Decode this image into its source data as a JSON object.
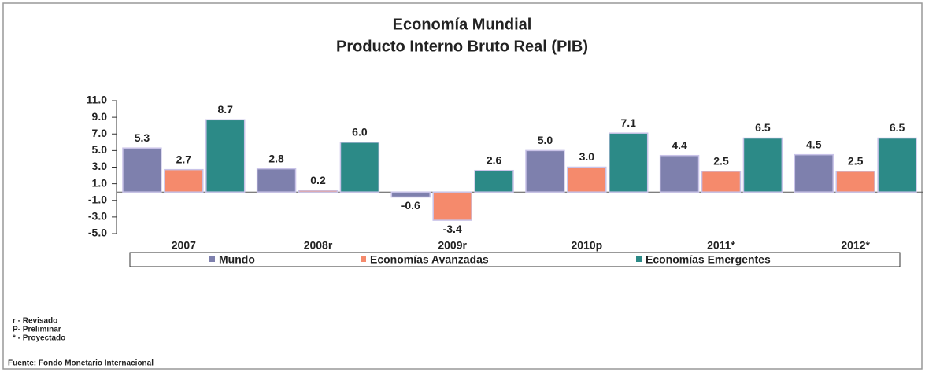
{
  "chart_data": {
    "type": "bar",
    "title": "Economía Mundial",
    "subtitle": "Producto Interno Bruto Real (PIB)",
    "categories": [
      "2007",
      "2008r",
      "2009r",
      "2010p",
      "2011*",
      "2012*"
    ],
    "series": [
      {
        "name": "Mundo",
        "color": "#7e80ad",
        "values": [
          5.3,
          2.8,
          -0.6,
          5.0,
          4.4,
          4.5
        ],
        "value_labels": [
          "5.3",
          "2.8",
          "-0.6",
          "5.0",
          "4.4",
          "4.5"
        ]
      },
      {
        "name": "Economías Avanzadas",
        "color": "#f58a6c",
        "values": [
          2.7,
          0.2,
          -3.4,
          3.0,
          2.5,
          2.5
        ],
        "value_labels": [
          "2.7",
          "0.2",
          "-3.4",
          "3.0",
          "2.5",
          "2.5"
        ]
      },
      {
        "name": "Economías Emergentes",
        "color": "#2c8a87",
        "values": [
          8.7,
          6.0,
          2.6,
          7.1,
          6.5,
          6.5
        ],
        "value_labels": [
          "8.7",
          "6.0",
          "2.6",
          "7.1",
          "6.5",
          "6.5"
        ]
      }
    ],
    "ylim": [
      -5,
      11
    ],
    "yticks": [
      {
        "value": 11,
        "label": "11.0"
      },
      {
        "value": 9,
        "label": "9.0"
      },
      {
        "value": 7,
        "label": "7.0"
      },
      {
        "value": 5,
        "label": "5.0"
      },
      {
        "value": 3,
        "label": "3.0"
      },
      {
        "value": 1,
        "label": "1.0"
      },
      {
        "value": -1,
        "label": "-1.0"
      },
      {
        "value": -3,
        "label": "-3.0"
      },
      {
        "value": -5,
        "label": "-5.0"
      }
    ],
    "notes": [
      "r - Revisado",
      "P- Preliminar",
      "* - Proyectado"
    ],
    "source": "Fuente: Fondo Monetario Internacional"
  }
}
